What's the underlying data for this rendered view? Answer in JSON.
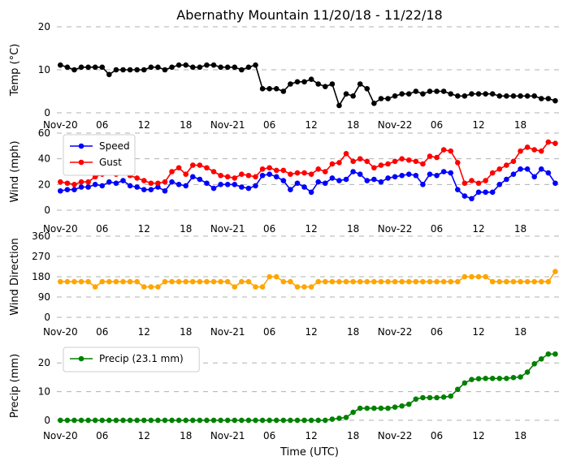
{
  "chart_data": {
    "type": "line",
    "title": "Abernathy Mountain 11/20/18 - 11/22/18",
    "x_ticks": [
      "Nov-20",
      "06",
      "12",
      "18",
      "Nov-21",
      "06",
      "12",
      "18",
      "Nov-22",
      "06",
      "12",
      "18"
    ],
    "x_tick_hours": [
      0,
      6,
      12,
      18,
      24,
      30,
      36,
      42,
      48,
      54,
      60,
      66
    ],
    "xlim_hours": [
      -0.5,
      72
    ],
    "xlabel": "Time (UTC)",
    "panels": [
      {
        "id": "temp",
        "ylabel": "Temp (°C)",
        "ylim": [
          0,
          20
        ],
        "yticks": [
          "0",
          "10",
          "20"
        ],
        "ytick_values": [
          0,
          10,
          20
        ],
        "grid": true,
        "legend": false,
        "series": [
          {
            "color": "#000000",
            "values": [
              11.1,
              10.6,
              10.0,
              10.6,
              10.6,
              10.6,
              10.6,
              8.9,
              10.0,
              10.0,
              10.0,
              10.0,
              10.0,
              10.6,
              10.6,
              10.0,
              10.6,
              11.1,
              11.1,
              10.6,
              10.6,
              11.1,
              11.1,
              10.6,
              10.6,
              10.6,
              10.0,
              10.6,
              11.1,
              5.6,
              5.6,
              5.6,
              5.0,
              6.7,
              7.2,
              7.2,
              7.8,
              6.7,
              6.1,
              6.7,
              1.7,
              4.4,
              3.9,
              6.7,
              5.6,
              2.2,
              3.3,
              3.3,
              3.9,
              4.4,
              4.4,
              5.0,
              4.4,
              5.0,
              5.0,
              5.0,
              4.4,
              3.9,
              3.9,
              4.4,
              4.4,
              4.4,
              4.4,
              3.9,
              3.9,
              3.9,
              3.9,
              3.9,
              3.9,
              3.3,
              3.3,
              2.8
            ]
          }
        ]
      },
      {
        "id": "wind",
        "ylabel": "Wind (mph)",
        "ylim": [
          0,
          60
        ],
        "yticks": [
          "0",
          "20",
          "40",
          "60"
        ],
        "ytick_values": [
          0,
          20,
          40,
          60
        ],
        "grid": true,
        "legend": "upper-left",
        "series": [
          {
            "name": "Speed",
            "color": "#0000ff",
            "values": [
              15,
              16,
              16,
              18,
              18,
              20,
              19,
              22,
              21,
              23,
              19,
              18,
              16,
              16,
              18,
              15,
              22,
              20,
              19,
              26,
              24,
              21,
              17,
              20,
              20,
              20,
              18,
              17,
              19,
              27,
              28,
              26,
              23,
              16,
              21,
              18,
              14,
              22,
              21,
              25,
              23,
              24,
              30,
              28,
              23,
              24,
              22,
              25,
              26,
              27,
              28,
              27,
              20,
              28,
              27,
              30,
              29,
              16,
              11,
              9,
              14,
              14,
              14,
              20,
              24,
              28,
              32,
              32,
              26,
              32,
              29,
              21
            ]
          },
          {
            "name": "Gust",
            "color": "#ff0000",
            "values": [
              22,
              21,
              20,
              22,
              22,
              26,
              28,
              29,
              28,
              30,
              27,
              25,
              23,
              21,
              21,
              22,
              30,
              33,
              28,
              35,
              35,
              33,
              30,
              27,
              26,
              25,
              28,
              27,
              26,
              32,
              33,
              31,
              31,
              28,
              29,
              29,
              28,
              32,
              30,
              36,
              37,
              44,
              38,
              40,
              38,
              33,
              35,
              36,
              38,
              40,
              39,
              38,
              36,
              42,
              41,
              47,
              46,
              37,
              21,
              23,
              21,
              23,
              29,
              32,
              35,
              38,
              46,
              49,
              47,
              46,
              53,
              52
            ]
          }
        ]
      },
      {
        "id": "dir",
        "ylabel": "Wind Direction",
        "ylim": [
          0,
          360
        ],
        "yticks": [
          "0",
          "90",
          "180",
          "270",
          "360"
        ],
        "ytick_values": [
          0,
          90,
          180,
          270,
          360
        ],
        "grid": true,
        "legend": false,
        "series": [
          {
            "color": "#ffa500",
            "values": [
              158,
              158,
              158,
              158,
              158,
              135,
              158,
              158,
              158,
              158,
              158,
              158,
              135,
              135,
              135,
              158,
              158,
              158,
              158,
              158,
              158,
              158,
              158,
              158,
              158,
              135,
              158,
              158,
              135,
              135,
              180,
              180,
              158,
              158,
              135,
              135,
              135,
              158,
              158,
              158,
              158,
              158,
              158,
              158,
              158,
              158,
              158,
              158,
              158,
              158,
              158,
              158,
              158,
              158,
              158,
              158,
              158,
              158,
              180,
              180,
              180,
              180,
              158,
              158,
              158,
              158,
              158,
              158,
              158,
              158,
              158,
              203
            ]
          }
        ]
      },
      {
        "id": "precip",
        "ylabel": "Precip (mm)",
        "ylim": [
          -2,
          26
        ],
        "yticks": [
          "0",
          "10",
          "20"
        ],
        "ytick_values": [
          0,
          10,
          20
        ],
        "grid": true,
        "legend": "upper-left",
        "series": [
          {
            "name": "Precip (23.1 mm)",
            "color": "#008000",
            "values": [
              0,
              0,
              0,
              0,
              0,
              0,
              0,
              0,
              0,
              0,
              0,
              0,
              0,
              0,
              0,
              0,
              0,
              0,
              0,
              0,
              0,
              0,
              0,
              0,
              0,
              0,
              0,
              0,
              0,
              0,
              0,
              0,
              0,
              0,
              0,
              0,
              0,
              0,
              0,
              0.4,
              0.7,
              1.0,
              2.8,
              4.2,
              4.2,
              4.2,
              4.2,
              4.2,
              4.6,
              5.0,
              5.6,
              7.4,
              7.9,
              7.9,
              7.9,
              8.1,
              8.4,
              10.8,
              13.0,
              14.2,
              14.5,
              14.6,
              14.6,
              14.6,
              14.6,
              14.9,
              15.1,
              16.8,
              19.7,
              21.4,
              23.1,
              23.1
            ]
          }
        ]
      }
    ]
  }
}
